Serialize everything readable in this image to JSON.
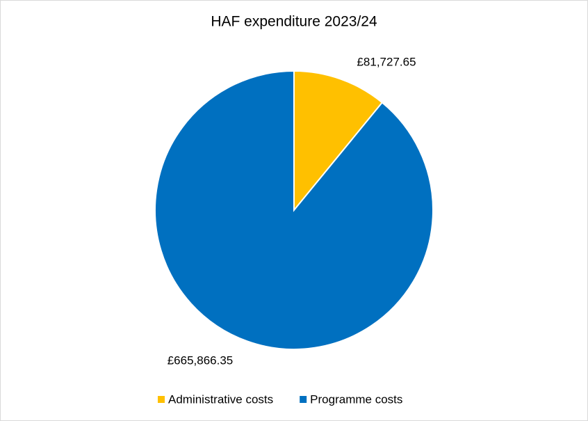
{
  "chart_data": {
    "type": "pie",
    "title": "HAF expenditure 2023/24",
    "categories": [
      "Administrative costs",
      "Programme costs"
    ],
    "values": [
      81727.65,
      665866.35
    ],
    "value_labels": [
      "£81,727.65",
      "£665,866.35"
    ],
    "colors": [
      "#FFC000",
      "#0070C0"
    ],
    "legend": "bottom"
  }
}
